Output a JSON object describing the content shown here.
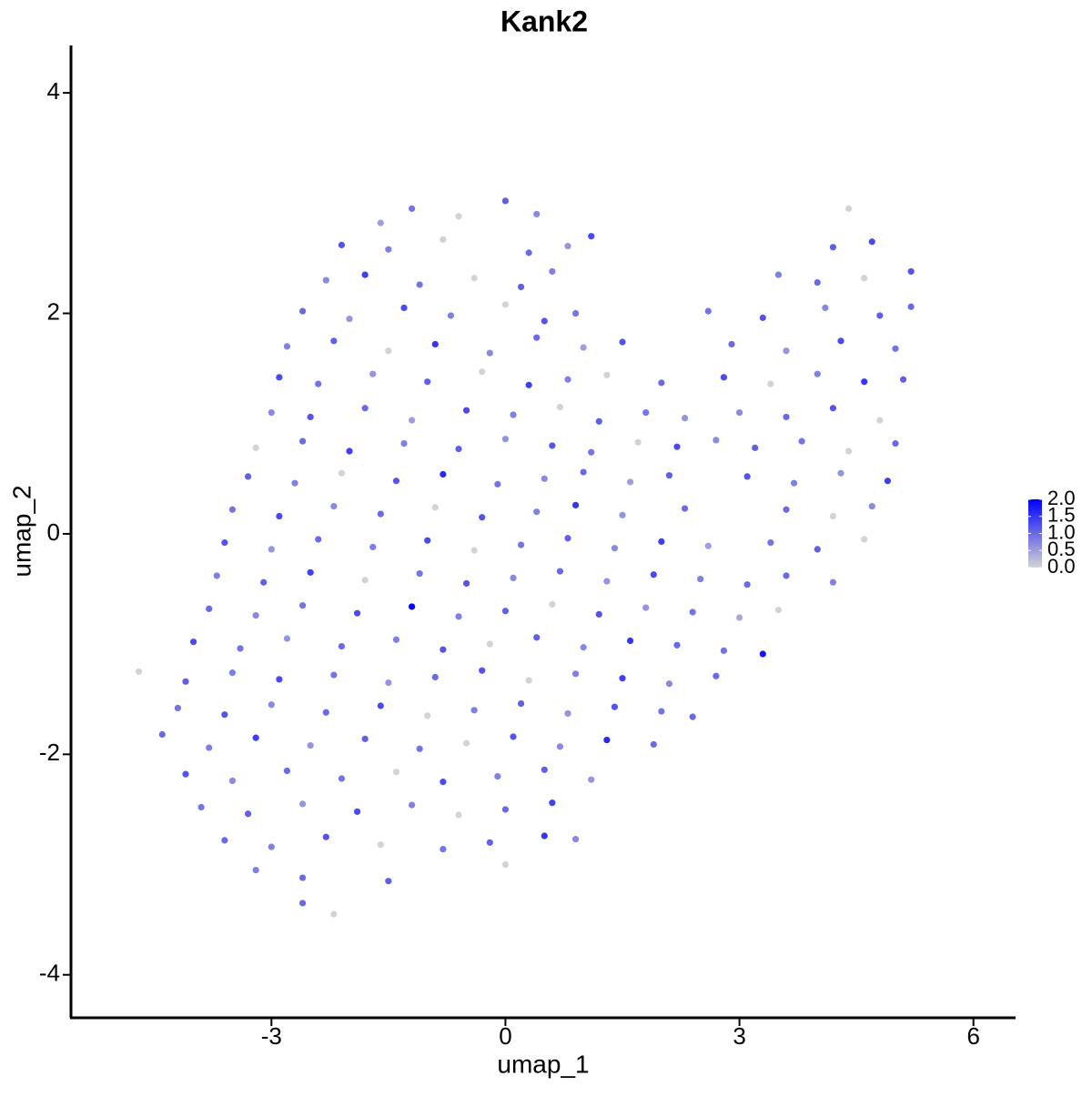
{
  "chart_data": {
    "type": "scatter",
    "title": "Kank2",
    "x_label": "umap_1",
    "y_label": "umap_2",
    "xlim": [
      -5.57,
      6.54
    ],
    "ylim": [
      -4.39,
      4.43
    ],
    "xticks": [
      -3,
      0,
      3,
      6
    ],
    "yticks": [
      -4,
      -2,
      0,
      2,
      4
    ],
    "colormap": [
      "#d3d3d3",
      "#0000ff"
    ],
    "clim": [
      0,
      2
    ],
    "cticks": [
      {
        "value": 0,
        "label": "0.0"
      },
      0.5,
      {
        "value": 1,
        "label": "1.0"
      },
      1.5,
      {
        "value": 2,
        "label": "2.0"
      }
    ],
    "x": [
      -1.2,
      -0.6,
      0,
      0.4,
      -1.6,
      -2.1,
      -1.5,
      -0.8,
      0.3,
      0.8,
      1.1,
      -2.3,
      -1.8,
      -1.1,
      -0.4,
      0.2,
      0.6,
      -2.6,
      -2.0,
      -1.3,
      -0.7,
      0,
      0.5,
      0.9,
      -2.8,
      -2.2,
      -1.5,
      -0.9,
      -0.2,
      0.4,
      1.0,
      1.5,
      -2.9,
      -2.4,
      -1.7,
      -1.0,
      -0.3,
      0.3,
      0.8,
      1.3,
      2.0,
      -3.0,
      -2.5,
      -1.8,
      -1.2,
      -0.5,
      0.1,
      0.7,
      1.2,
      1.8,
      2.3,
      -3.2,
      -2.6,
      -2.0,
      -1.3,
      -0.6,
      0,
      0.6,
      1.1,
      1.7,
      2.2,
      2.7,
      -3.3,
      -2.7,
      -2.1,
      -1.4,
      -0.8,
      -0.1,
      0.5,
      1.0,
      1.6,
      2.1,
      -3.5,
      -2.9,
      -2.2,
      -1.6,
      -0.9,
      -0.3,
      0.4,
      0.9,
      1.5,
      2.3,
      -3.6,
      -3.0,
      -2.4,
      -1.7,
      -1.0,
      -0.4,
      0.2,
      0.8,
      1.4,
      2.0,
      2.6,
      -3.7,
      -3.1,
      -2.5,
      -1.8,
      -1.1,
      -0.5,
      0.1,
      0.7,
      1.3,
      1.9,
      2.5,
      3.1,
      -3.8,
      -3.2,
      -2.6,
      -1.9,
      -1.2,
      -0.6,
      0,
      0.6,
      1.2,
      1.8,
      2.4,
      3.0,
      3.5,
      -4.0,
      -3.4,
      -2.8,
      -2.1,
      -1.4,
      -0.8,
      -0.2,
      0.4,
      1.0,
      1.6,
      2.2,
      2.8,
      3.3,
      -4.7,
      -4.1,
      -3.5,
      -2.9,
      -2.2,
      -1.5,
      -0.9,
      -0.3,
      0.3,
      0.9,
      1.5,
      2.1,
      2.7,
      -4.2,
      -3.6,
      -3.0,
      -2.3,
      -1.6,
      -1.0,
      -0.4,
      0.2,
      0.8,
      1.4,
      2.0,
      2.4,
      -4.4,
      -3.8,
      -3.2,
      -2.5,
      -1.8,
      -1.1,
      -0.5,
      0.1,
      0.7,
      1.3,
      1.9,
      -4.1,
      -3.5,
      -2.8,
      -2.1,
      -1.4,
      -0.8,
      -0.1,
      0.5,
      1.1,
      -3.9,
      -3.3,
      -2.6,
      -1.9,
      -1.2,
      -0.6,
      0,
      0.6,
      -3.6,
      -3.0,
      -2.3,
      -1.6,
      -0.8,
      -0.2,
      0.5,
      0.9,
      -3.2,
      -2.6,
      -1.5,
      0.0,
      -2.6,
      -2.2,
      4.4,
      4.2,
      4.7,
      3.5,
      4.0,
      4.6,
      5.2,
      2.6,
      3.3,
      4.1,
      4.8,
      5.2,
      2.9,
      3.6,
      4.3,
      5.0,
      2.8,
      3.4,
      4.0,
      4.6,
      5.1,
      3.0,
      3.6,
      4.2,
      4.8,
      3.2,
      3.8,
      4.4,
      5.0,
      3.1,
      3.7,
      4.3,
      4.9,
      3.6,
      4.2,
      4.7,
      3.4,
      4.0,
      4.6,
      3.6,
      4.2
    ],
    "series": [
      {
        "name": "Kank2",
        "y": [
          2.95,
          2.88,
          3.02,
          2.9,
          2.82,
          2.62,
          2.58,
          2.67,
          2.55,
          2.61,
          2.7,
          2.3,
          2.35,
          2.26,
          2.32,
          2.24,
          2.38,
          2.02,
          1.95,
          2.05,
          1.98,
          2.08,
          1.93,
          2.0,
          1.7,
          1.75,
          1.66,
          1.72,
          1.64,
          1.78,
          1.69,
          1.74,
          1.42,
          1.36,
          1.45,
          1.38,
          1.47,
          1.35,
          1.4,
          1.44,
          1.37,
          1.1,
          1.06,
          1.14,
          1.03,
          1.12,
          1.08,
          1.15,
          1.02,
          1.1,
          1.05,
          0.78,
          0.84,
          0.75,
          0.82,
          0.77,
          0.86,
          0.8,
          0.74,
          0.83,
          0.79,
          0.85,
          0.52,
          0.46,
          0.55,
          0.48,
          0.54,
          0.45,
          0.5,
          0.56,
          0.47,
          0.53,
          0.22,
          0.16,
          0.25,
          0.18,
          0.24,
          0.15,
          0.2,
          0.26,
          0.17,
          0.23,
          -0.08,
          -0.14,
          -0.05,
          -0.12,
          -0.06,
          -0.15,
          -0.1,
          -0.04,
          -0.13,
          -0.07,
          -0.11,
          -0.38,
          -0.44,
          -0.35,
          -0.42,
          -0.36,
          -0.45,
          -0.4,
          -0.34,
          -0.43,
          -0.37,
          -0.41,
          -0.46,
          -0.68,
          -0.74,
          -0.65,
          -0.72,
          -0.66,
          -0.75,
          -0.7,
          -0.64,
          -0.73,
          -0.67,
          -0.71,
          -0.76,
          -0.69,
          -0.98,
          -1.04,
          -0.95,
          -1.02,
          -0.96,
          -1.05,
          -1.0,
          -0.94,
          -1.03,
          -0.97,
          -1.01,
          -1.06,
          -1.09,
          -1.25,
          -1.34,
          -1.26,
          -1.32,
          -1.28,
          -1.35,
          -1.3,
          -1.24,
          -1.33,
          -1.27,
          -1.31,
          -1.36,
          -1.29,
          -1.58,
          -1.64,
          -1.55,
          -1.62,
          -1.56,
          -1.65,
          -1.6,
          -1.54,
          -1.63,
          -1.57,
          -1.61,
          -1.66,
          -1.82,
          -1.94,
          -1.85,
          -1.92,
          -1.86,
          -1.95,
          -1.9,
          -1.84,
          -1.93,
          -1.87,
          -1.91,
          -2.18,
          -2.24,
          -2.15,
          -2.22,
          -2.16,
          -2.25,
          -2.2,
          -2.14,
          -2.23,
          -2.48,
          -2.54,
          -2.45,
          -2.52,
          -2.46,
          -2.55,
          -2.5,
          -2.44,
          -2.78,
          -2.84,
          -2.75,
          -2.82,
          -2.86,
          -2.8,
          -2.74,
          -2.77,
          -3.05,
          -3.12,
          -3.15,
          -3.0,
          -3.35,
          -3.45,
          2.95,
          2.6,
          2.65,
          2.35,
          2.28,
          2.32,
          2.38,
          2.02,
          1.96,
          2.05,
          1.98,
          2.06,
          1.72,
          1.66,
          1.75,
          1.68,
          1.42,
          1.36,
          1.45,
          1.38,
          1.4,
          1.1,
          1.06,
          1.14,
          1.03,
          0.78,
          0.84,
          0.75,
          0.82,
          0.52,
          0.46,
          0.55,
          0.48,
          0.22,
          0.16,
          0.25,
          -0.08,
          -0.14,
          -0.05,
          -0.38,
          -0.44
        ],
        "values": [
          0.9,
          0,
          1.1,
          0.7,
          0.5,
          1.2,
          0.8,
          0,
          1.0,
          0.6,
          1.3,
          0.7,
          1.4,
          0.9,
          0,
          1.1,
          0.8,
          1.0,
          0.6,
          1.3,
          0.8,
          0,
          1.2,
          0.9,
          0.8,
          1.1,
          0,
          1.5,
          0.7,
          1.0,
          0.5,
          1.2,
          1.3,
          0.9,
          0.6,
          1.1,
          0,
          1.4,
          0.8,
          0,
          1.0,
          0.7,
          1.2,
          1.0,
          0.5,
          1.3,
          0.8,
          0,
          1.1,
          0.9,
          0.6,
          0,
          1.0,
          1.4,
          0.8,
          1.1,
          0.6,
          1.2,
          0.9,
          0,
          1.3,
          0.7,
          1.1,
          0.8,
          0,
          1.2,
          1.6,
          0.9,
          0.7,
          1.0,
          0.5,
          1.1,
          0.9,
          1.3,
          0.7,
          1.0,
          0,
          1.2,
          0.8,
          1.5,
          0.6,
          1.0,
          1.2,
          0.6,
          1.0,
          0.8,
          1.3,
          0,
          0.9,
          1.1,
          0.7,
          1.4,
          0.5,
          0.8,
          1.1,
          1.4,
          0,
          0.9,
          1.2,
          0.7,
          1.0,
          0.6,
          1.3,
          0.8,
          1.0,
          1.0,
          0.7,
          0.9,
          1.3,
          2.0,
          0.8,
          1.1,
          0,
          1.2,
          0.6,
          0.9,
          0.4,
          0,
          1.3,
          0.9,
          0.6,
          1.0,
          0.8,
          1.2,
          0,
          1.1,
          0.7,
          1.5,
          1.0,
          0.9,
          1.8,
          0,
          1.1,
          0.8,
          1.3,
          0.9,
          0.6,
          1.0,
          1.2,
          0,
          0.8,
          1.4,
          0.7,
          1.0,
          0.9,
          1.2,
          0.7,
          1.0,
          1.3,
          0,
          0.8,
          1.1,
          0.6,
          1.2,
          0.9,
          1.0,
          1.0,
          0.8,
          1.4,
          0.6,
          1.1,
          0.9,
          0,
          1.2,
          0.7,
          1.6,
          1.0,
          1.2,
          0.7,
          1.0,
          0.9,
          0,
          1.3,
          0.8,
          1.1,
          0.6,
          0.9,
          1.1,
          0.6,
          1.3,
          0.8,
          0,
          1.0,
          1.4,
          1.0,
          0.8,
          1.2,
          0,
          0.9,
          1.1,
          1.5,
          0.7,
          0.8,
          1.0,
          1.1,
          0,
          1.0,
          0,
          0,
          1.1,
          1.3,
          0.8,
          1.0,
          0,
          1.2,
          0.9,
          1.2,
          0.7,
          1.1,
          1.0,
          1.0,
          0.6,
          1.3,
          0.9,
          1.3,
          0,
          0.8,
          1.5,
          1.1,
          0.7,
          1.0,
          1.2,
          0,
          1.1,
          0.9,
          0,
          1.0,
          1.2,
          0.8,
          0.6,
          1.4,
          1.0,
          0,
          0.7,
          0.9,
          1.1,
          0,
          1.0,
          0.8
        ]
      }
    ]
  }
}
